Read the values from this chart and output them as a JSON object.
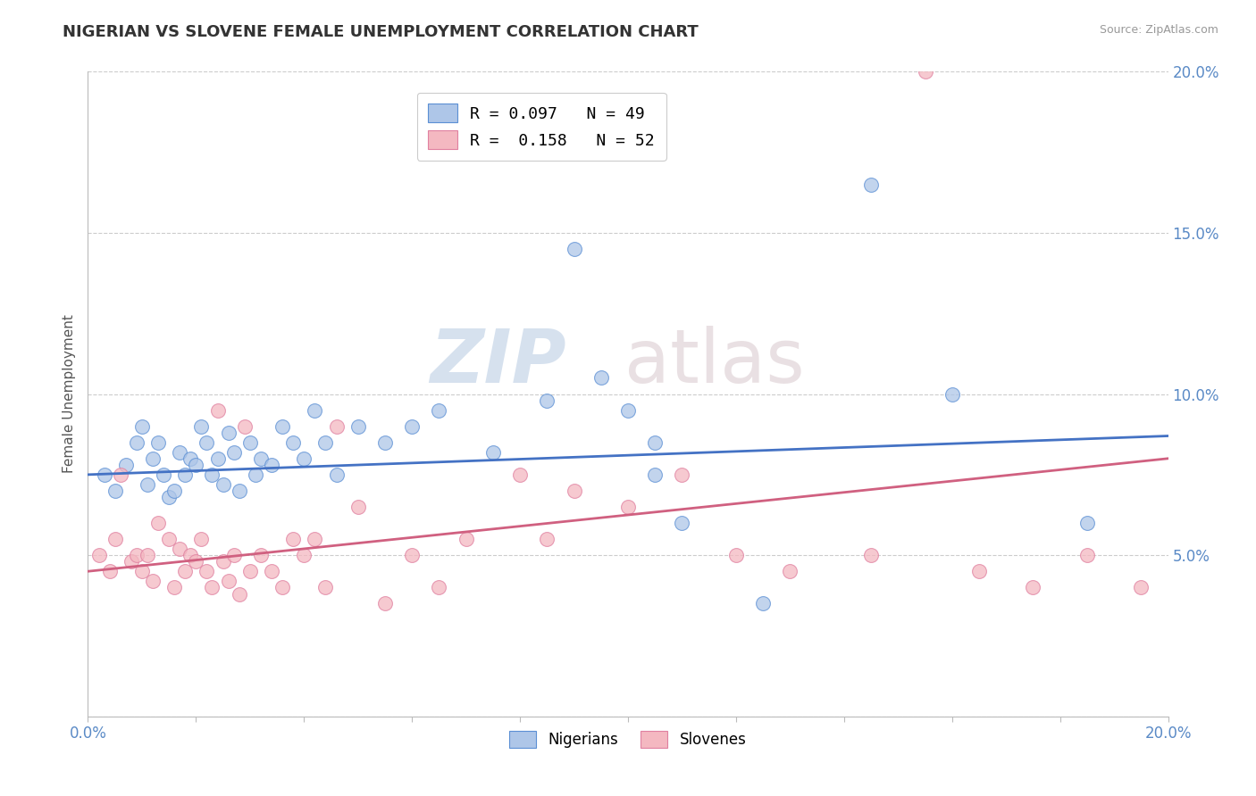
{
  "title": "NIGERIAN VS SLOVENE FEMALE UNEMPLOYMENT CORRELATION CHART",
  "source": "Source: ZipAtlas.com",
  "ylabel": "Female Unemployment",
  "legend_entries": [
    {
      "label": "R = 0.097   N = 49",
      "color": "#aec6e8"
    },
    {
      "label": "R =  0.158   N = 52",
      "color": "#f4b8c1"
    }
  ],
  "legend_bottom": [
    "Nigerians",
    "Slovenes"
  ],
  "nigerians_x": [
    0.3,
    0.5,
    0.7,
    0.9,
    1.0,
    1.1,
    1.2,
    1.3,
    1.4,
    1.5,
    1.6,
    1.7,
    1.8,
    1.9,
    2.0,
    2.1,
    2.2,
    2.3,
    2.4,
    2.5,
    2.6,
    2.7,
    2.8,
    3.0,
    3.1,
    3.2,
    3.4,
    3.6,
    3.8,
    4.0,
    4.2,
    4.4,
    4.6,
    5.0,
    5.5,
    6.0,
    6.5,
    7.5,
    8.5,
    9.5,
    10.5,
    12.5,
    14.5,
    9.0,
    16.0,
    18.5,
    10.0,
    10.5,
    11.0
  ],
  "nigerians_y": [
    7.5,
    7.0,
    7.8,
    8.5,
    9.0,
    7.2,
    8.0,
    8.5,
    7.5,
    6.8,
    7.0,
    8.2,
    7.5,
    8.0,
    7.8,
    9.0,
    8.5,
    7.5,
    8.0,
    7.2,
    8.8,
    8.2,
    7.0,
    8.5,
    7.5,
    8.0,
    7.8,
    9.0,
    8.5,
    8.0,
    9.5,
    8.5,
    7.5,
    9.0,
    8.5,
    9.0,
    9.5,
    8.2,
    9.8,
    10.5,
    7.5,
    3.5,
    16.5,
    14.5,
    10.0,
    6.0,
    9.5,
    8.5,
    6.0
  ],
  "slovenes_x": [
    0.2,
    0.4,
    0.5,
    0.6,
    0.8,
    0.9,
    1.0,
    1.1,
    1.2,
    1.3,
    1.5,
    1.6,
    1.7,
    1.8,
    1.9,
    2.0,
    2.1,
    2.2,
    2.3,
    2.4,
    2.5,
    2.6,
    2.7,
    2.8,
    2.9,
    3.0,
    3.2,
    3.4,
    3.6,
    3.8,
    4.0,
    4.2,
    4.4,
    4.6,
    5.0,
    5.5,
    6.0,
    6.5,
    7.0,
    8.0,
    8.5,
    9.0,
    10.0,
    11.0,
    12.0,
    13.0,
    14.5,
    15.5,
    16.5,
    17.5,
    18.5,
    19.5
  ],
  "slovenes_y": [
    5.0,
    4.5,
    5.5,
    7.5,
    4.8,
    5.0,
    4.5,
    5.0,
    4.2,
    6.0,
    5.5,
    4.0,
    5.2,
    4.5,
    5.0,
    4.8,
    5.5,
    4.5,
    4.0,
    9.5,
    4.8,
    4.2,
    5.0,
    3.8,
    9.0,
    4.5,
    5.0,
    4.5,
    4.0,
    5.5,
    5.0,
    5.5,
    4.0,
    9.0,
    6.5,
    3.5,
    5.0,
    4.0,
    5.5,
    7.5,
    5.5,
    7.0,
    6.5,
    7.5,
    5.0,
    4.5,
    5.0,
    20.0,
    4.5,
    4.0,
    5.0,
    4.0
  ],
  "nigerian_color": "#aec6e8",
  "nigerian_edge_color": "#5b8fd4",
  "nigerian_line_color": "#4472c4",
  "slovene_color": "#f4b8c1",
  "slovene_edge_color": "#e080a0",
  "slovene_line_color": "#d06080",
  "bg_color": "#ffffff",
  "grid_color": "#cccccc",
  "xmin": 0.0,
  "xmax": 20.0,
  "ymin": 0.0,
  "ymax": 20.0,
  "nigerian_trend_x0": 0.0,
  "nigerian_trend_y0": 7.5,
  "nigerian_trend_x1": 20.0,
  "nigerian_trend_y1": 8.7,
  "slovene_trend_x0": 0.0,
  "slovene_trend_y0": 4.5,
  "slovene_trend_x1": 20.0,
  "slovene_trend_y1": 8.0
}
